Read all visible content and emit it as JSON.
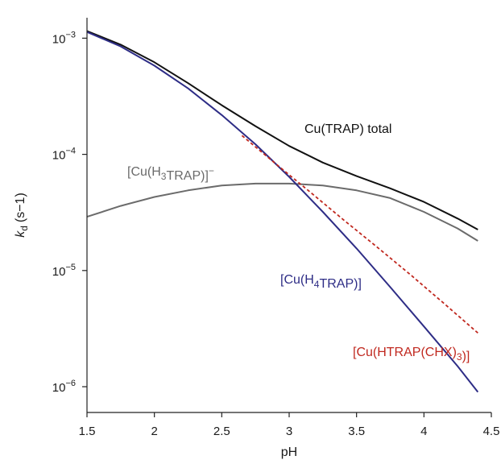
{
  "chart_data": {
    "type": "line",
    "xlabel": "pH",
    "ylabel": "k_d (s−1)",
    "ylabel_parts": {
      "main": "k",
      "sub": "d",
      "unit": "(s−1)"
    },
    "xlim": [
      1.5,
      4.5
    ],
    "ylim": [
      6e-07,
      0.0015
    ],
    "yscale": "log",
    "grid": false,
    "x_ticks": [
      1.5,
      2,
      2.5,
      3,
      3.5,
      4,
      4.5
    ],
    "x_tick_labels": [
      "1.5",
      "2",
      "2.5",
      "3",
      "3.5",
      "4",
      "4.5"
    ],
    "y_ticks": [
      {
        "value": 1e-06,
        "base": "10",
        "exp": "−6"
      },
      {
        "value": 1e-05,
        "base": "10",
        "exp": "−5"
      },
      {
        "value": 0.0001,
        "base": "10",
        "exp": "−4"
      },
      {
        "value": 0.001,
        "base": "10",
        "exp": "−3"
      }
    ],
    "series": [
      {
        "name": "Cu(TRAP) total",
        "label_parts": [
          {
            "t": "Cu(TRAP) total"
          }
        ],
        "color": "#111111",
        "dash": false,
        "x": [
          1.5,
          1.75,
          2.0,
          2.25,
          2.5,
          2.75,
          3.0,
          3.25,
          3.5,
          3.75,
          4.0,
          4.25,
          4.4
        ],
        "y": [
          0.00115,
          0.00088,
          0.00062,
          0.00041,
          0.000265,
          0.000175,
          0.000118,
          8.5e-05,
          6.5e-05,
          5.1e-05,
          3.9e-05,
          2.8e-05,
          2.25e-05
        ]
      },
      {
        "name": "[Cu(H3TRAP)]−",
        "label_parts": [
          {
            "t": "[Cu(H"
          },
          {
            "t": "3",
            "sub": true
          },
          {
            "t": "TRAP)]"
          },
          {
            "t": "−",
            "sup": true
          }
        ],
        "color": "#6b6b6b",
        "dash": false,
        "x": [
          1.5,
          1.75,
          2.0,
          2.25,
          2.5,
          2.75,
          3.0,
          3.25,
          3.5,
          3.75,
          4.0,
          4.25,
          4.4
        ],
        "y": [
          2.9e-05,
          3.6e-05,
          4.3e-05,
          4.9e-05,
          5.4e-05,
          5.6e-05,
          5.6e-05,
          5.4e-05,
          4.9e-05,
          4.2e-05,
          3.2e-05,
          2.3e-05,
          1.8e-05
        ]
      },
      {
        "name": "[Cu(H4TRAP)]",
        "label_parts": [
          {
            "t": "[Cu(H"
          },
          {
            "t": "4",
            "sub": true
          },
          {
            "t": "TRAP)]"
          }
        ],
        "color": "#2e2d86",
        "dash": false,
        "x": [
          1.5,
          1.75,
          2.0,
          2.25,
          2.5,
          2.75,
          3.0,
          3.25,
          3.5,
          3.75,
          4.0,
          4.25,
          4.4
        ],
        "y": [
          0.00113,
          0.00085,
          0.00058,
          0.00037,
          0.000218,
          0.000122,
          6.4e-05,
          3.2e-05,
          1.55e-05,
          7.2e-06,
          3.3e-06,
          1.5e-06,
          9e-07
        ]
      },
      {
        "name": "[Cu(HTRAP(CHX)3)]",
        "label_parts": [
          {
            "t": "[Cu(HTRAP(CHX)"
          },
          {
            "t": "3",
            "sub": true
          },
          {
            "t": ")]"
          }
        ],
        "color": "#c0281f",
        "dash": true,
        "x": [
          2.65,
          2.9,
          3.15,
          3.4,
          3.65,
          3.9,
          4.15,
          4.4
        ],
        "y": [
          0.000145,
          8.3e-05,
          4.8e-05,
          2.75e-05,
          1.6e-05,
          9.2e-06,
          5.2e-06,
          2.9e-06
        ]
      }
    ]
  }
}
